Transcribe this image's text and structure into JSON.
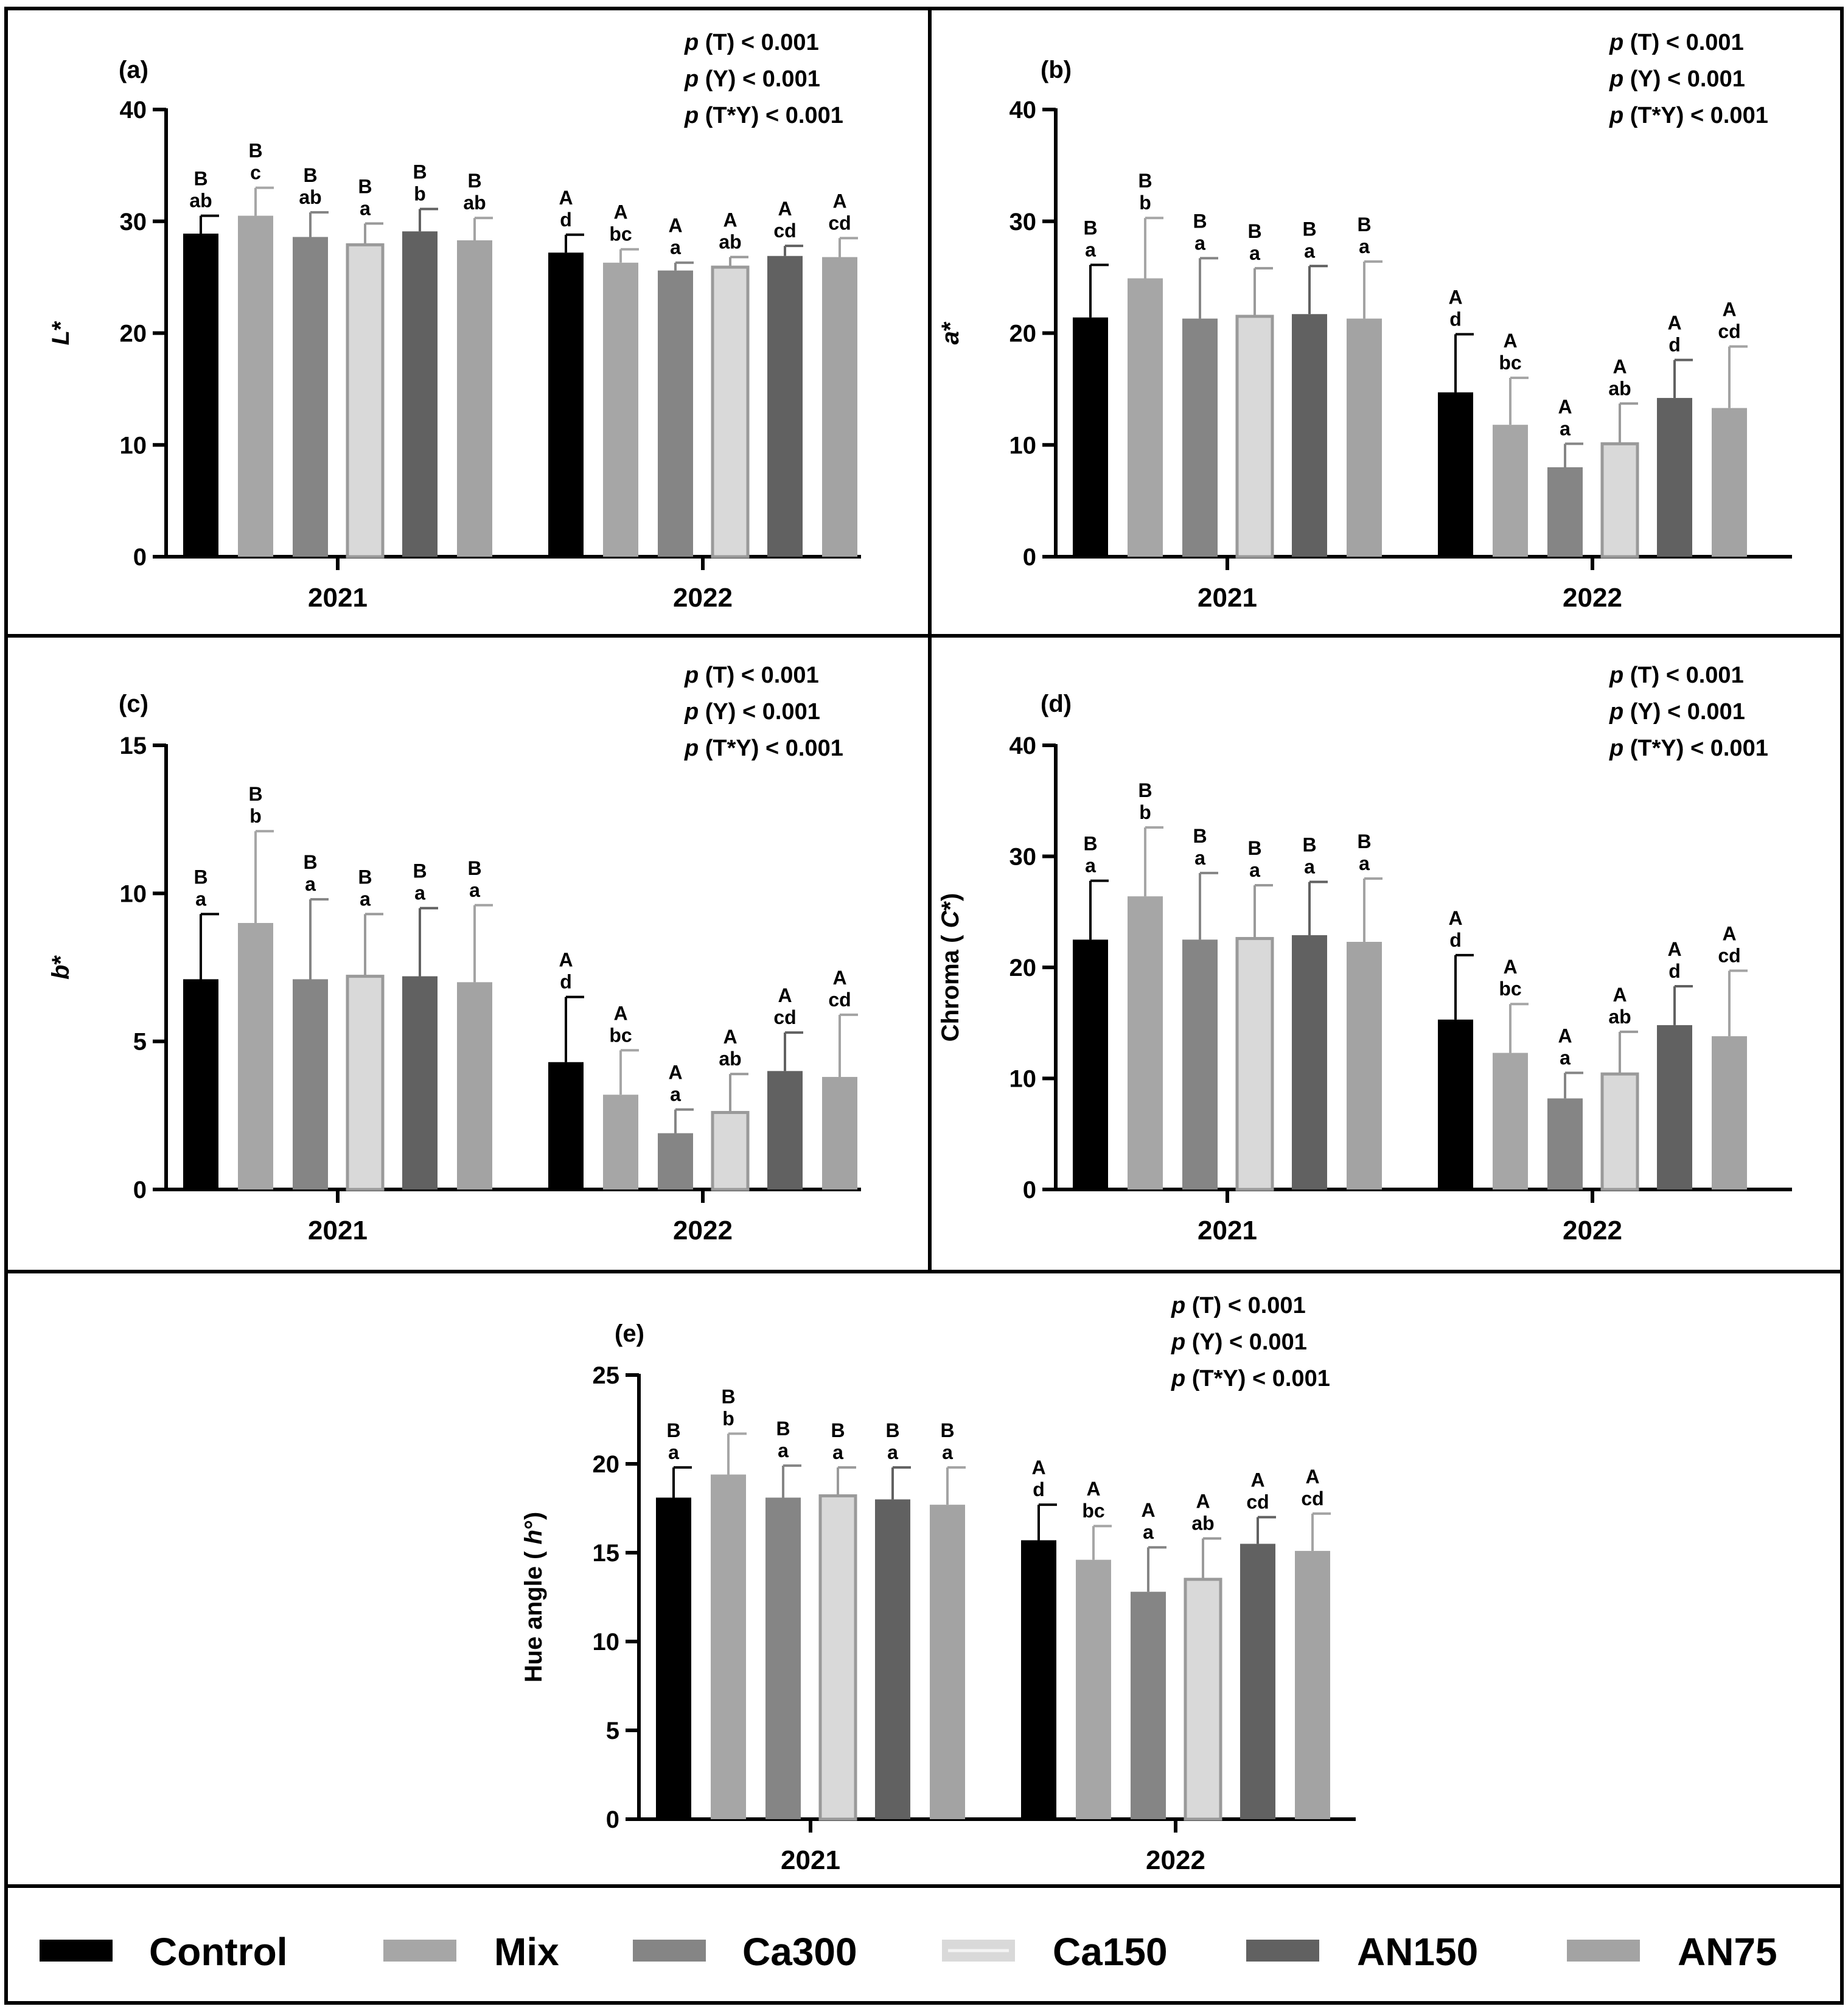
{
  "treatments": [
    {
      "name": "Control",
      "color": "#000000",
      "outline": "none"
    },
    {
      "name": "Mix",
      "color": "#a6a6a6",
      "outline": "none"
    },
    {
      "name": "Ca300",
      "color": "#858585",
      "outline": "none"
    },
    {
      "name": "Ca150",
      "color": "#d9d9d9",
      "outline": "#9a9a9a"
    },
    {
      "name": "AN150",
      "color": "#616161",
      "outline": "none"
    },
    {
      "name": "AN75",
      "color": "#a3a3a3",
      "outline": "none"
    }
  ],
  "chart_data": [
    {
      "type": "bar",
      "panel_label": "(a)",
      "ylabel": "L*",
      "ylabel_prefix": "",
      "ylabel_italic": "L",
      "ylabel_suffix": "*",
      "ylim": [
        0,
        40
      ],
      "yticks": [
        "0",
        "10",
        "20",
        "30",
        "40"
      ],
      "yticks_values": [
        0,
        10,
        20,
        30,
        40
      ],
      "categories": [
        "2021",
        "2022"
      ],
      "stats": [
        {
          "p": "p",
          "text": " (T) < 0.001"
        },
        {
          "p": "p",
          "text": " (Y) < 0.001"
        },
        {
          "p": "p",
          "text": " (T*Y) < 0.001"
        }
      ],
      "series": [
        {
          "name": "Control",
          "values": [
            28.9,
            27.2
          ],
          "errors": [
            1.6,
            1.6
          ],
          "letters_upper": [
            "B",
            "A"
          ],
          "letters_lower": [
            "ab",
            "d"
          ]
        },
        {
          "name": "Mix",
          "values": [
            30.5,
            26.3
          ],
          "errors": [
            2.5,
            1.2
          ],
          "letters_upper": [
            "B",
            "A"
          ],
          "letters_lower": [
            "c",
            "bc"
          ]
        },
        {
          "name": "Ca300",
          "values": [
            28.6,
            25.6
          ],
          "errors": [
            2.2,
            0.7
          ],
          "letters_upper": [
            "B",
            "A"
          ],
          "letters_lower": [
            "ab",
            "a"
          ]
        },
        {
          "name": "Ca150",
          "values": [
            27.9,
            25.9
          ],
          "errors": [
            1.9,
            0.9
          ],
          "letters_upper": [
            "B",
            "A"
          ],
          "letters_lower": [
            "a",
            "ab"
          ]
        },
        {
          "name": "AN150",
          "values": [
            29.1,
            26.9
          ],
          "errors": [
            2.0,
            0.9
          ],
          "letters_upper": [
            "B",
            "A"
          ],
          "letters_lower": [
            "b",
            "cd"
          ]
        },
        {
          "name": "AN75",
          "values": [
            28.3,
            26.8
          ],
          "errors": [
            2.0,
            1.7
          ],
          "letters_upper": [
            "B",
            "A"
          ],
          "letters_lower": [
            "ab",
            "cd"
          ]
        }
      ]
    },
    {
      "type": "bar",
      "panel_label": "(b)",
      "ylabel": "a*",
      "ylabel_prefix": "",
      "ylabel_italic": "a",
      "ylabel_suffix": "*",
      "ylim": [
        0,
        40
      ],
      "yticks": [
        "0",
        "10",
        "20",
        "30",
        "40"
      ],
      "yticks_values": [
        0,
        10,
        20,
        30,
        40
      ],
      "categories": [
        "2021",
        "2022"
      ],
      "stats": [
        {
          "p": "p",
          "text": " (T) < 0.001"
        },
        {
          "p": "p",
          "text": " (Y) < 0.001"
        },
        {
          "p": "p",
          "text": " (T*Y) < 0.001"
        }
      ],
      "series": [
        {
          "name": "Control",
          "values": [
            21.4,
            14.7
          ],
          "errors": [
            4.7,
            5.2
          ],
          "letters_upper": [
            "B",
            "A"
          ],
          "letters_lower": [
            "a",
            "d"
          ]
        },
        {
          "name": "Mix",
          "values": [
            24.9,
            11.8
          ],
          "errors": [
            5.4,
            4.2
          ],
          "letters_upper": [
            "B",
            "A"
          ],
          "letters_lower": [
            "b",
            "bc"
          ]
        },
        {
          "name": "Ca300",
          "values": [
            21.3,
            8.0
          ],
          "errors": [
            5.4,
            2.1
          ],
          "letters_upper": [
            "B",
            "A"
          ],
          "letters_lower": [
            "a",
            "a"
          ]
        },
        {
          "name": "Ca150",
          "values": [
            21.5,
            10.1
          ],
          "errors": [
            4.3,
            3.6
          ],
          "letters_upper": [
            "B",
            "A"
          ],
          "letters_lower": [
            "a",
            "ab"
          ]
        },
        {
          "name": "AN150",
          "values": [
            21.7,
            14.2
          ],
          "errors": [
            4.3,
            3.4
          ],
          "letters_upper": [
            "B",
            "A"
          ],
          "letters_lower": [
            "a",
            "d"
          ]
        },
        {
          "name": "AN75",
          "values": [
            21.3,
            13.3
          ],
          "errors": [
            5.1,
            5.5
          ],
          "letters_upper": [
            "B",
            "A"
          ],
          "letters_lower": [
            "a",
            "cd"
          ]
        }
      ]
    },
    {
      "type": "bar",
      "panel_label": "(c)",
      "ylabel": "b*",
      "ylabel_prefix": "",
      "ylabel_italic": "b",
      "ylabel_suffix": "*",
      "ylim": [
        0,
        15
      ],
      "yticks": [
        "0",
        "5",
        "10",
        "15"
      ],
      "yticks_values": [
        0,
        5,
        10,
        15
      ],
      "categories": [
        "2021",
        "2022"
      ],
      "stats": [
        {
          "p": "p",
          "text": " (T) < 0.001"
        },
        {
          "p": "p",
          "text": " (Y) < 0.001"
        },
        {
          "p": "p",
          "text": " (T*Y) < 0.001"
        }
      ],
      "series": [
        {
          "name": "Control",
          "values": [
            7.1,
            4.3
          ],
          "errors": [
            2.2,
            2.2
          ],
          "letters_upper": [
            "B",
            "A"
          ],
          "letters_lower": [
            "a",
            "d"
          ]
        },
        {
          "name": "Mix",
          "values": [
            9.0,
            3.2
          ],
          "errors": [
            3.1,
            1.5
          ],
          "letters_upper": [
            "B",
            "A"
          ],
          "letters_lower": [
            "b",
            "bc"
          ]
        },
        {
          "name": "Ca300",
          "values": [
            7.1,
            1.9
          ],
          "errors": [
            2.7,
            0.8
          ],
          "letters_upper": [
            "B",
            "A"
          ],
          "letters_lower": [
            "a",
            "a"
          ]
        },
        {
          "name": "Ca150",
          "values": [
            7.2,
            2.6
          ],
          "errors": [
            2.1,
            1.3
          ],
          "letters_upper": [
            "B",
            "A"
          ],
          "letters_lower": [
            "a",
            "ab"
          ]
        },
        {
          "name": "AN150",
          "values": [
            7.2,
            4.0
          ],
          "errors": [
            2.3,
            1.3
          ],
          "letters_upper": [
            "B",
            "A"
          ],
          "letters_lower": [
            "a",
            "cd"
          ]
        },
        {
          "name": "AN75",
          "values": [
            7.0,
            3.8
          ],
          "errors": [
            2.6,
            2.1
          ],
          "letters_upper": [
            "B",
            "A"
          ],
          "letters_lower": [
            "a",
            "cd"
          ]
        }
      ]
    },
    {
      "type": "bar",
      "panel_label": "(d)",
      "ylabel": "Chroma ( C*)",
      "ylabel_prefix": "Chroma ( ",
      "ylabel_italic": "C",
      "ylabel_suffix": "*)",
      "ylim": [
        0,
        40
      ],
      "yticks": [
        "0",
        "10",
        "20",
        "30",
        "40"
      ],
      "yticks_values": [
        0,
        10,
        20,
        30,
        40
      ],
      "categories": [
        "2021",
        "2022"
      ],
      "stats": [
        {
          "p": "p",
          "text": " (T) < 0.001"
        },
        {
          "p": "p",
          "text": " (Y) < 0.001"
        },
        {
          "p": "p",
          "text": " (T*Y) < 0.001"
        }
      ],
      "series": [
        {
          "name": "Control",
          "values": [
            22.5,
            15.3
          ],
          "errors": [
            5.3,
            5.8
          ],
          "letters_upper": [
            "B",
            "A"
          ],
          "letters_lower": [
            "a",
            "d"
          ]
        },
        {
          "name": "Mix",
          "values": [
            26.4,
            12.3
          ],
          "errors": [
            6.2,
            4.4
          ],
          "letters_upper": [
            "B",
            "A"
          ],
          "letters_lower": [
            "b",
            "bc"
          ]
        },
        {
          "name": "Ca300",
          "values": [
            22.5,
            8.2
          ],
          "errors": [
            6.0,
            2.3
          ],
          "letters_upper": [
            "B",
            "A"
          ],
          "letters_lower": [
            "a",
            "a"
          ]
        },
        {
          "name": "Ca150",
          "values": [
            22.6,
            10.4
          ],
          "errors": [
            4.8,
            3.8
          ],
          "letters_upper": [
            "B",
            "A"
          ],
          "letters_lower": [
            "a",
            "ab"
          ]
        },
        {
          "name": "AN150",
          "values": [
            22.9,
            14.8
          ],
          "errors": [
            4.8,
            3.5
          ],
          "letters_upper": [
            "B",
            "A"
          ],
          "letters_lower": [
            "a",
            "d"
          ]
        },
        {
          "name": "AN75",
          "values": [
            22.3,
            13.8
          ],
          "errors": [
            5.7,
            5.9
          ],
          "letters_upper": [
            "B",
            "A"
          ],
          "letters_lower": [
            "a",
            "cd"
          ]
        }
      ]
    },
    {
      "type": "bar",
      "panel_label": "(e)",
      "ylabel": "Hue angle ( h°)",
      "ylabel_prefix": "Hue angle ( ",
      "ylabel_italic": "h",
      "ylabel_suffix": "°)",
      "ylim": [
        0,
        25
      ],
      "yticks": [
        "0",
        "5",
        "10",
        "15",
        "20",
        "25"
      ],
      "yticks_values": [
        0,
        5,
        10,
        15,
        20,
        25
      ],
      "categories": [
        "2021",
        "2022"
      ],
      "stats": [
        {
          "p": "p",
          "text": " (T) < 0.001"
        },
        {
          "p": "p",
          "text": " (Y) < 0.001"
        },
        {
          "p": "p",
          "text": " (T*Y) < 0.001"
        }
      ],
      "series": [
        {
          "name": "Control",
          "values": [
            18.1,
            15.7
          ],
          "errors": [
            1.7,
            2.0
          ],
          "letters_upper": [
            "B",
            "A"
          ],
          "letters_lower": [
            "a",
            "d"
          ]
        },
        {
          "name": "Mix",
          "values": [
            19.4,
            14.6
          ],
          "errors": [
            2.3,
            1.9
          ],
          "letters_upper": [
            "B",
            "A"
          ],
          "letters_lower": [
            "b",
            "bc"
          ]
        },
        {
          "name": "Ca300",
          "values": [
            18.1,
            12.8
          ],
          "errors": [
            1.8,
            2.5
          ],
          "letters_upper": [
            "B",
            "A"
          ],
          "letters_lower": [
            "a",
            "a"
          ]
        },
        {
          "name": "Ca150",
          "values": [
            18.2,
            13.5
          ],
          "errors": [
            1.6,
            2.3
          ],
          "letters_upper": [
            "B",
            "A"
          ],
          "letters_lower": [
            "a",
            "ab"
          ]
        },
        {
          "name": "AN150",
          "values": [
            18.0,
            15.5
          ],
          "errors": [
            1.8,
            1.5
          ],
          "letters_upper": [
            "B",
            "A"
          ],
          "letters_lower": [
            "a",
            "cd"
          ]
        },
        {
          "name": "AN75",
          "values": [
            17.7,
            15.1
          ],
          "errors": [
            2.1,
            2.1
          ],
          "letters_upper": [
            "B",
            "A"
          ],
          "letters_lower": [
            "a",
            "cd"
          ]
        }
      ]
    }
  ]
}
